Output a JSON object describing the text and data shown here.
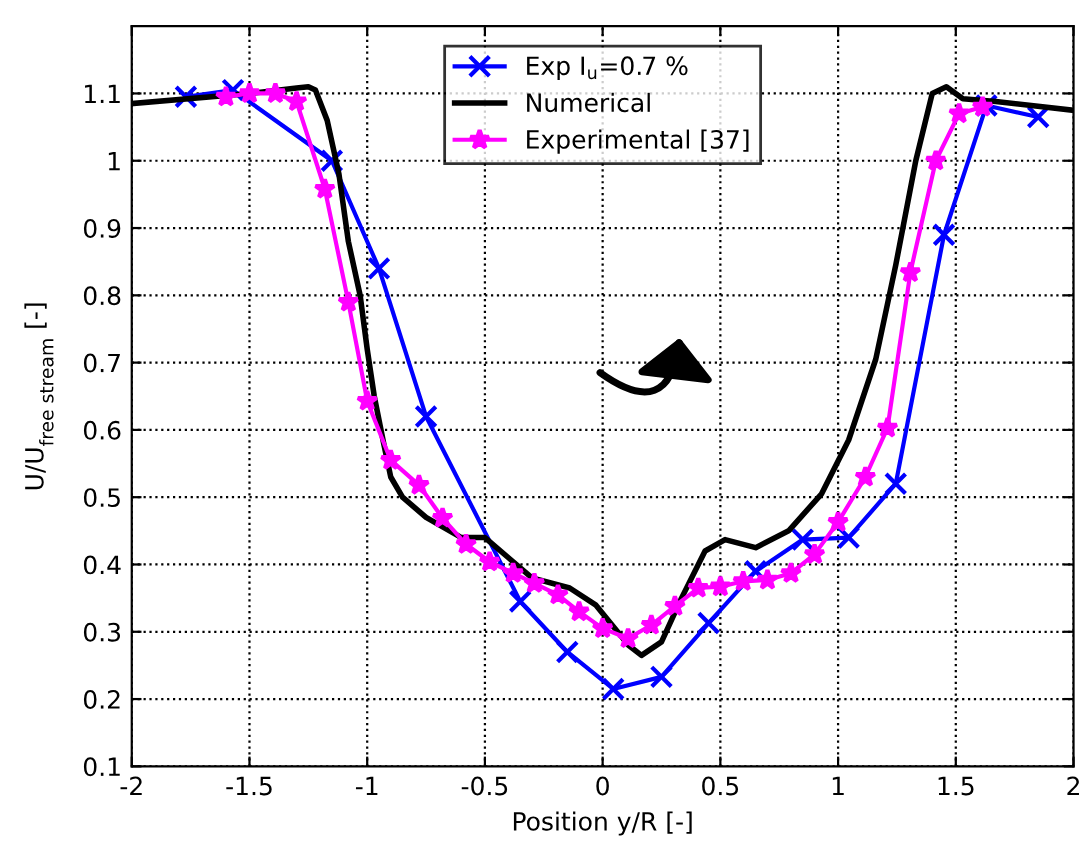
{
  "chart_data": {
    "type": "line",
    "xlabel": "Position y/R [-]",
    "ylabel": "U/U$_{free stream}$ [-]",
    "xlim": [
      -2,
      2
    ],
    "xticks": [
      -2,
      -1.5,
      -1,
      -0.5,
      0,
      0.5,
      1,
      1.5,
      2
    ],
    "ylim": [
      0.1,
      1.2
    ],
    "yticks": [
      0.1,
      0.2,
      0.3,
      0.4,
      0.5,
      0.6,
      0.7,
      0.8,
      0.9,
      1,
      1.1
    ],
    "grid": true,
    "legend": "top",
    "series": [
      {
        "name": "Exp I$_{u}$=0.7 %",
        "color": "#0000ff",
        "marker": "cross",
        "x": [
          -1.77,
          -1.57,
          -1.15,
          -0.95,
          -0.75,
          -0.35,
          -0.15,
          0.045,
          0.25,
          0.45,
          0.65,
          0.85,
          1.045,
          1.245,
          1.45,
          1.63,
          1.85
        ],
        "values": [
          1.095,
          1.105,
          1.0,
          0.84,
          0.62,
          0.345,
          0.27,
          0.215,
          0.233,
          0.313,
          0.39,
          0.437,
          0.44,
          0.52,
          0.89,
          1.082,
          1.065
        ]
      },
      {
        "name": "Numerical",
        "color": "#000000",
        "marker": "none",
        "x": [
          -2,
          -1.5,
          -1.3,
          -1.25,
          -1.22,
          -1.17,
          -1.12,
          -1.08,
          -1.03,
          -1.0,
          -0.97,
          -0.93,
          -0.9,
          -0.85,
          -0.75,
          -0.6,
          -0.5,
          -0.4,
          -0.3,
          -0.14,
          -0.03,
          0.11,
          0.165,
          0.25,
          0.335,
          0.435,
          0.52,
          0.65,
          0.79,
          0.93,
          1.045,
          1.16,
          1.245,
          1.33,
          1.4,
          1.46,
          1.53,
          1.67,
          2.0
        ],
        "values": [
          1.085,
          1.1,
          1.108,
          1.11,
          1.105,
          1.06,
          0.98,
          0.88,
          0.8,
          0.72,
          0.65,
          0.58,
          0.53,
          0.5,
          0.47,
          0.44,
          0.44,
          0.41,
          0.38,
          0.365,
          0.34,
          0.28,
          0.265,
          0.285,
          0.35,
          0.42,
          0.437,
          0.425,
          0.45,
          0.505,
          0.585,
          0.705,
          0.845,
          1.0,
          1.1,
          1.11,
          1.092,
          1.088,
          1.075
        ]
      },
      {
        "name": "Experimental [37]",
        "color": "#ff00ff",
        "marker": "star",
        "x": [
          -1.6,
          -1.5,
          -1.39,
          -1.3,
          -1.18,
          -1.08,
          -1.0,
          -0.9,
          -0.78,
          -0.68,
          -0.58,
          -0.48,
          -0.38,
          -0.29,
          -0.19,
          -0.1,
          0.0,
          0.108,
          0.207,
          0.307,
          0.406,
          0.5,
          0.597,
          0.7,
          0.8,
          0.9,
          1.0,
          1.116,
          1.21,
          1.307,
          1.415,
          1.514,
          1.614
        ],
        "values": [
          1.095,
          1.1,
          1.1,
          1.088,
          0.958,
          0.79,
          0.643,
          0.555,
          0.518,
          0.469,
          0.43,
          0.404,
          0.387,
          0.372,
          0.355,
          0.33,
          0.305,
          0.29,
          0.31,
          0.338,
          0.365,
          0.367,
          0.375,
          0.377,
          0.387,
          0.415,
          0.463,
          0.53,
          0.603,
          0.834,
          1.0,
          1.07,
          1.08
        ]
      }
    ]
  }
}
